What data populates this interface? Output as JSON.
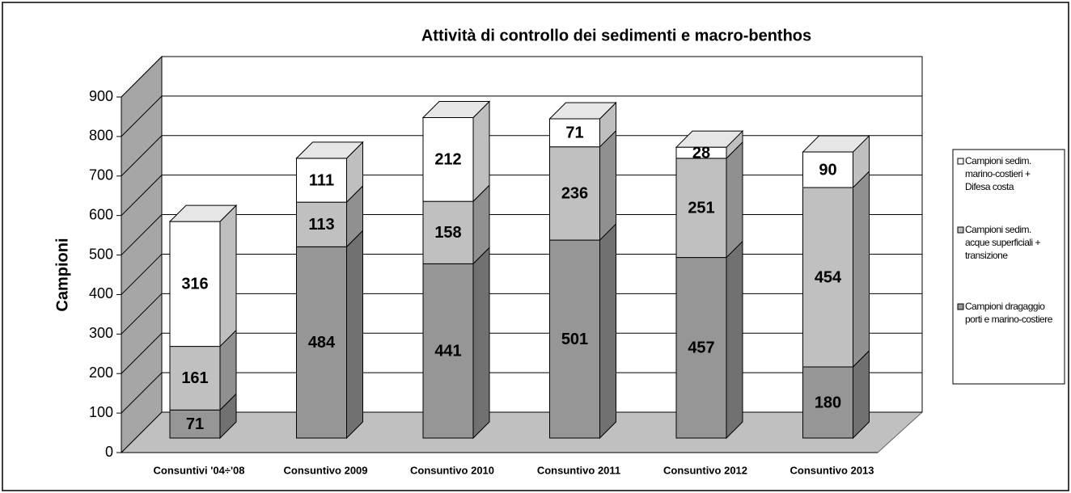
{
  "chart_data": {
    "type": "bar3d_stacked",
    "title": "Attività di controllo dei sedimenti e macro-benthos",
    "y_label": "Campioni",
    "categories": [
      "Consuntivi '04÷'08",
      "Consuntivo 2009",
      "Consuntivo 2010",
      "Consuntivo 2011",
      "Consuntivo 2012",
      "Consuntivo 2013"
    ],
    "series": [
      {
        "name": "Campioni dragaggio porti e marino-costiere",
        "color": "#969696",
        "values": [
          71,
          484,
          441,
          501,
          457,
          180
        ]
      },
      {
        "name": "Campioni sedim. acque superficiali + transizione",
        "color": "#c0c0c0",
        "values": [
          161,
          113,
          158,
          236,
          251,
          454
        ]
      },
      {
        "name": "Campioni sedim. marino-costieri + Difesa costa",
        "color": "#ffffff",
        "values": [
          316,
          111,
          212,
          71,
          28,
          90
        ]
      }
    ],
    "ylim": [
      0,
      900
    ],
    "yticks": [
      0,
      100,
      200,
      300,
      400,
      500,
      600,
      700,
      800,
      900
    ],
    "grid": true,
    "legend": "right"
  }
}
